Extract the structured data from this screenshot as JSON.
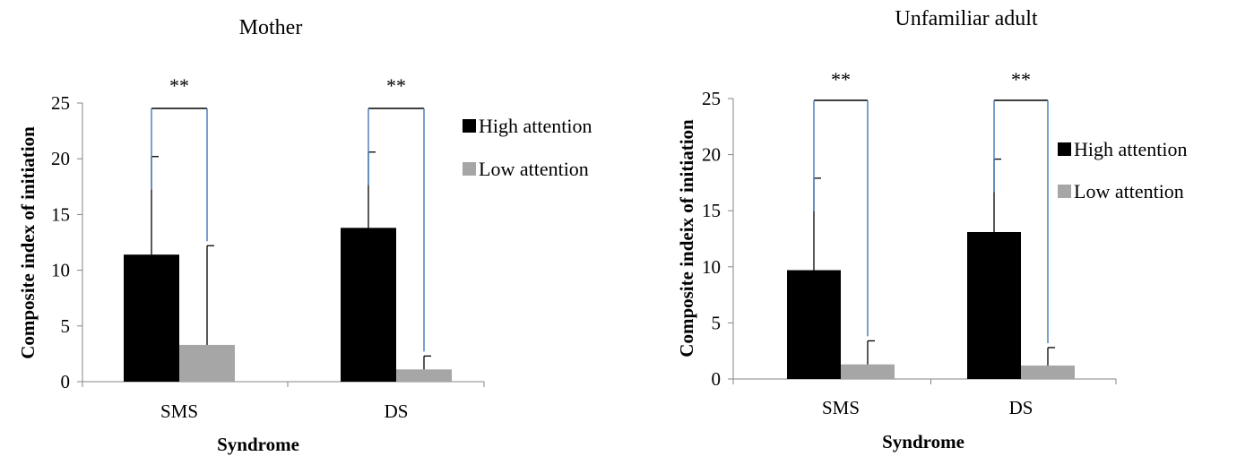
{
  "charts": [
    {
      "type": "bar",
      "title": "Mother",
      "xlabel": "Syndrome",
      "ylabel": "Composite index of initiation",
      "categories": [
        "SMS",
        "DS"
      ],
      "ylim": [
        0,
        25
      ],
      "yticks": [
        "0",
        "5",
        "10",
        "15",
        "20",
        "25"
      ],
      "grid": false,
      "legend_position": "right",
      "series": [
        {
          "name": "High attention",
          "color": "#000000",
          "values": [
            11.4,
            13.8
          ],
          "errors": [
            8.8,
            6.8
          ]
        },
        {
          "name": "Low attention",
          "color": "#a6a6a6",
          "values": [
            3.3,
            1.1
          ],
          "errors": [
            8.9,
            1.2
          ]
        }
      ],
      "significance": [
        "**",
        "**"
      ],
      "bracket_color": "#4f81bd"
    },
    {
      "type": "bar",
      "title": "Unfamiliar adult",
      "xlabel": "Syndrome",
      "ylabel": "Composite indeix of initiation",
      "categories": [
        "SMS",
        "DS"
      ],
      "ylim": [
        0,
        25
      ],
      "yticks": [
        "0",
        "5",
        "10",
        "15",
        "20",
        "25"
      ],
      "grid": false,
      "legend_position": "right",
      "series": [
        {
          "name": "High attention",
          "color": "#000000",
          "values": [
            9.7,
            13.1
          ],
          "errors": [
            8.2,
            6.5
          ]
        },
        {
          "name": "Low attention",
          "color": "#a6a6a6",
          "values": [
            1.3,
            1.2
          ],
          "errors": [
            2.1,
            1.6
          ]
        }
      ],
      "significance": [
        "**",
        "**"
      ],
      "bracket_color": "#4f81bd"
    }
  ]
}
